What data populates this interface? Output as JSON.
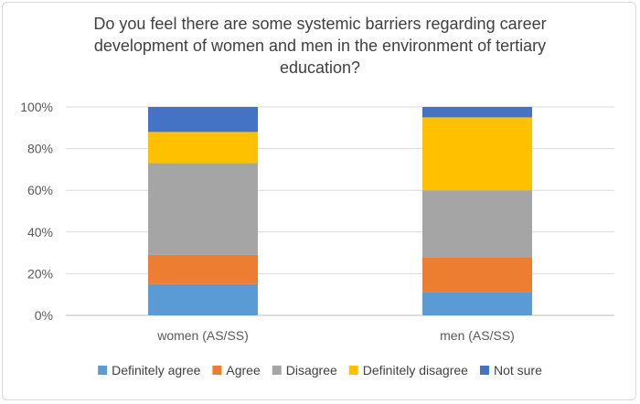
{
  "chart_data": {
    "type": "bar",
    "stacked": true,
    "percent": true,
    "title": "Do you feel there are some systemic barriers regarding career development of women and men in the environment of tertiary education?",
    "categories": [
      "women (AS/SS)",
      "men (AS/SS)"
    ],
    "series": [
      {
        "name": "Definitely agree",
        "color": "#5B9BD5",
        "values": [
          15,
          11
        ]
      },
      {
        "name": "Agree",
        "color": "#ED7D31",
        "values": [
          14,
          17
        ]
      },
      {
        "name": "Disagree",
        "color": "#A5A5A5",
        "values": [
          44,
          32
        ]
      },
      {
        "name": "Definitely disagree",
        "color": "#FFC000",
        "values": [
          15,
          35
        ]
      },
      {
        "name": "Not sure",
        "color": "#4472C4",
        "values": [
          12,
          5
        ]
      }
    ],
    "ylim": [
      0,
      100
    ],
    "yticks": [
      "0%",
      "20%",
      "40%",
      "60%",
      "80%",
      "100%"
    ],
    "grid": true,
    "legend": "bottom"
  }
}
